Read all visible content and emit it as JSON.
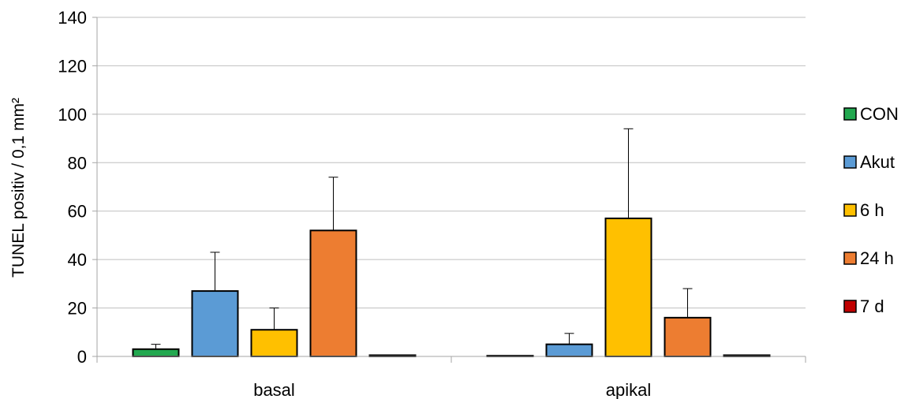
{
  "chart_data": {
    "type": "bar",
    "title": "",
    "xlabel": "",
    "ylabel": "TUNEL positiv / 0,1 mm²",
    "ylim": [
      0,
      140
    ],
    "yticks": [
      0,
      20,
      40,
      60,
      80,
      100,
      120,
      140
    ],
    "grid": true,
    "legend_position": "right",
    "categories": [
      "basal",
      "apikal"
    ],
    "series": [
      {
        "name": "CON",
        "color": "#22a84f",
        "values": [
          3,
          0.3
        ],
        "errors": [
          2,
          0
        ]
      },
      {
        "name": "Akut",
        "color": "#5b9bd5",
        "values": [
          27,
          5
        ],
        "errors": [
          16,
          4.5
        ]
      },
      {
        "name": "6 h",
        "color": "#ffc000",
        "values": [
          11,
          57
        ],
        "errors": [
          9,
          37
        ]
      },
      {
        "name": "24 h",
        "color": "#ed7d31",
        "values": [
          52,
          16
        ],
        "errors": [
          22,
          12
        ]
      },
      {
        "name": "7 d",
        "color": "#c00000",
        "values": [
          0.5,
          0.5
        ],
        "errors": [
          0,
          0
        ]
      }
    ]
  }
}
